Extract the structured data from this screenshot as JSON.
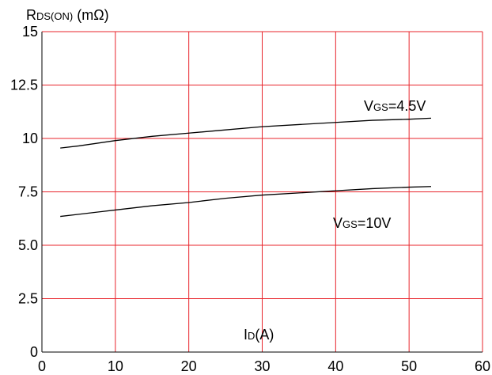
{
  "chart_data": {
    "type": "line",
    "ylabel": {
      "main": "R",
      "sub": "DS(ON)",
      "unit": " (mΩ)"
    },
    "xlabel": {
      "main": "I",
      "sub": "D",
      "unit": "(A)"
    },
    "xlim": [
      0,
      60
    ],
    "ylim": [
      0,
      15
    ],
    "x_ticks": [
      0,
      10,
      20,
      30,
      40,
      50,
      60
    ],
    "x_tick_labels": [
      "0",
      "10",
      "20",
      "30",
      "40",
      "50",
      "60"
    ],
    "y_ticks": [
      0,
      2.5,
      5,
      7.5,
      10,
      12.5,
      15
    ],
    "y_tick_labels": [
      "0",
      "2.5",
      "5.0",
      "7.5",
      "10",
      "12.5",
      "15"
    ],
    "grid": true,
    "grid_color": "#e8242b",
    "line_color": "#000000",
    "series": [
      {
        "name": "VGS=4.5V",
        "label": {
          "main": "V",
          "sub": "GS",
          "rest": "=4.5V"
        },
        "x": [
          2.5,
          5,
          10,
          15,
          20,
          25,
          30,
          35,
          40,
          45,
          50,
          53
        ],
        "values": [
          9.55,
          9.65,
          9.9,
          10.1,
          10.25,
          10.4,
          10.55,
          10.65,
          10.75,
          10.85,
          10.9,
          10.95
        ]
      },
      {
        "name": "VGS=10V",
        "label": {
          "main": "V",
          "sub": "GS",
          "rest": "=10V"
        },
        "x": [
          2.5,
          5,
          10,
          15,
          20,
          25,
          30,
          35,
          40,
          45,
          50,
          53
        ],
        "values": [
          6.35,
          6.45,
          6.65,
          6.85,
          7.0,
          7.2,
          7.35,
          7.45,
          7.55,
          7.65,
          7.72,
          7.75
        ]
      }
    ]
  }
}
